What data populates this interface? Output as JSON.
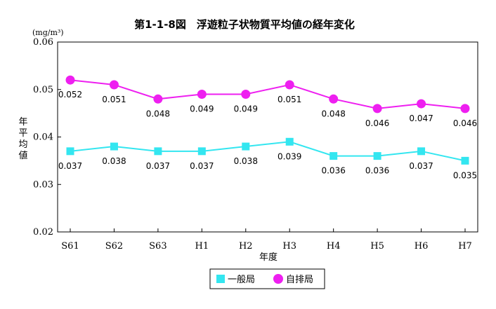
{
  "chart_data": {
    "type": "line",
    "title": "第1-1-8図　浮遊粒子状物質平均値の経年変化",
    "unit": "(mg/m³)",
    "ylabel": "年平均値",
    "xlabel": "年度",
    "categories": [
      "S61",
      "S62",
      "S63",
      "H1",
      "H2",
      "H3",
      "H4",
      "H5",
      "H6",
      "H7"
    ],
    "ylim": [
      0.02,
      0.06
    ],
    "yticks": [
      "0.02",
      "0.03",
      "0.04",
      "0.05",
      "0.06"
    ],
    "grid": false,
    "legend_position": "bottom-center",
    "series": [
      {
        "name": "一般局",
        "marker": "square",
        "color": "#33e6f0",
        "values": [
          0.037,
          0.038,
          0.037,
          0.037,
          0.038,
          0.039,
          0.036,
          0.036,
          0.037,
          0.035
        ],
        "labels": [
          "0.037",
          "0.038",
          "0.037",
          "0.037",
          "0.038",
          "0.039",
          "0.036",
          "0.036",
          "0.037",
          "0.035"
        ]
      },
      {
        "name": "自排局",
        "marker": "circle",
        "color": "#ee1ff0",
        "values": [
          0.052,
          0.051,
          0.048,
          0.049,
          0.049,
          0.051,
          0.048,
          0.046,
          0.047,
          0.046
        ],
        "labels": [
          "0.052",
          "0.051",
          "0.048",
          "0.049",
          "0.049",
          "0.051",
          "0.048",
          "0.046",
          "0.047",
          "0.046"
        ]
      }
    ]
  }
}
